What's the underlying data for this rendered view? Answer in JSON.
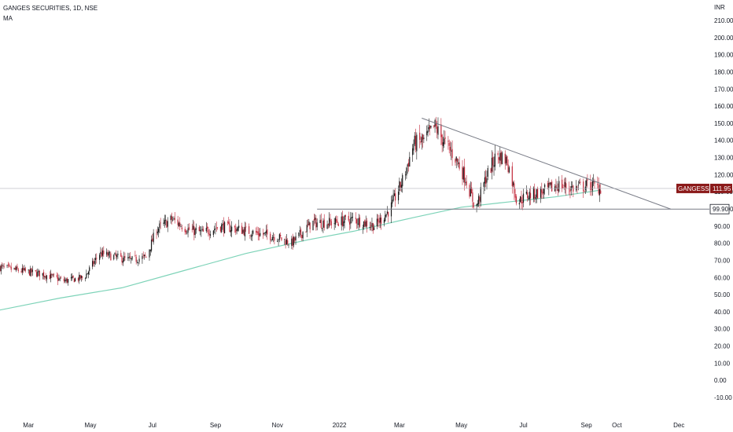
{
  "legend": {
    "title": "GANGES SECURITIES, 1D, NSE",
    "indicator": "MA"
  },
  "price_axis": {
    "currency": "INR",
    "ticks": [
      "210.00",
      "200.00",
      "190.00",
      "180.00",
      "170.00",
      "160.00",
      "150.00",
      "140.00",
      "130.00",
      "120.00",
      "110.00",
      "100.00",
      "90.00",
      "80.00",
      "70.00",
      "60.00",
      "50.00",
      "40.00",
      "30.00",
      "20.00",
      "10.00",
      "0.00",
      "-10.00"
    ]
  },
  "time_axis": {
    "ticks": [
      "Mar",
      "May",
      "Jul",
      "Sep",
      "Nov",
      "2022",
      "Mar",
      "May",
      "Jul",
      "Sep",
      "Oct",
      "Dec"
    ]
  },
  "last_price": {
    "symbol": "GANGESSECU",
    "value": "111.95",
    "color": "#8b1a1a"
  },
  "support_level": {
    "value": "99.90"
  },
  "colors": {
    "up": "#1a1a1a",
    "down": "#c2283a",
    "ma": "#7dd3b8",
    "trendline": "#787b86",
    "crosshair": "#b2b5be"
  },
  "chart_data": {
    "type": "candlestick",
    "title": "GANGES SECURITIES, 1D, NSE",
    "ylim": [
      -10,
      215
    ],
    "xlabel": "",
    "ylabel": "INR",
    "x_range": [
      "2021-02-01",
      "2022-12-31"
    ],
    "price_path": [
      [
        "2021-02-01",
        66
      ],
      [
        "2021-02-20",
        64
      ],
      [
        "2021-03-15",
        62
      ],
      [
        "2021-04-05",
        58
      ],
      [
        "2021-04-25",
        60
      ],
      [
        "2021-05-10",
        74
      ],
      [
        "2021-05-25",
        72
      ],
      [
        "2021-06-10",
        70
      ],
      [
        "2021-06-25",
        72
      ],
      [
        "2021-07-05",
        88
      ],
      [
        "2021-07-20",
        94
      ],
      [
        "2021-08-05",
        88
      ],
      [
        "2021-08-20",
        86
      ],
      [
        "2021-09-05",
        90
      ],
      [
        "2021-09-25",
        88
      ],
      [
        "2021-10-10",
        86
      ],
      [
        "2021-10-30",
        84
      ],
      [
        "2021-11-15",
        80
      ],
      [
        "2021-12-05",
        92
      ],
      [
        "2021-12-25",
        92
      ],
      [
        "2022-01-15",
        94
      ],
      [
        "2022-02-05",
        90
      ],
      [
        "2022-02-20",
        100
      ],
      [
        "2022-03-05",
        118
      ],
      [
        "2022-03-15",
        138
      ],
      [
        "2022-03-25",
        140
      ],
      [
        "2022-04-05",
        148
      ],
      [
        "2022-04-15",
        138
      ],
      [
        "2022-04-25",
        130
      ],
      [
        "2022-05-05",
        118
      ],
      [
        "2022-05-15",
        100
      ],
      [
        "2022-05-25",
        118
      ],
      [
        "2022-06-05",
        132
      ],
      [
        "2022-06-15",
        128
      ],
      [
        "2022-06-25",
        104
      ],
      [
        "2022-07-05",
        108
      ],
      [
        "2022-07-20",
        110
      ],
      [
        "2022-08-05",
        114
      ],
      [
        "2022-08-20",
        112
      ],
      [
        "2022-09-05",
        114
      ],
      [
        "2022-09-15",
        111.95
      ]
    ],
    "moving_average": [
      [
        "2021-02-01",
        41
      ],
      [
        "2021-04-01",
        48
      ],
      [
        "2021-06-01",
        54
      ],
      [
        "2021-08-01",
        64
      ],
      [
        "2021-10-01",
        74
      ],
      [
        "2021-12-01",
        82
      ],
      [
        "2022-01-15",
        87
      ],
      [
        "2022-03-15",
        95
      ],
      [
        "2022-05-01",
        101
      ],
      [
        "2022-06-15",
        104
      ],
      [
        "2022-08-01",
        107
      ],
      [
        "2022-09-15",
        111
      ]
    ],
    "trendlines": [
      {
        "from": [
          "2022-03-23",
          153
        ],
        "to": [
          "2022-11-23",
          99.9
        ]
      },
      {
        "from": [
          "2021-12-10",
          99.9
        ],
        "to": [
          "2022-12-31",
          99.9
        ]
      }
    ],
    "last_price": 111.95,
    "support": 99.9
  }
}
